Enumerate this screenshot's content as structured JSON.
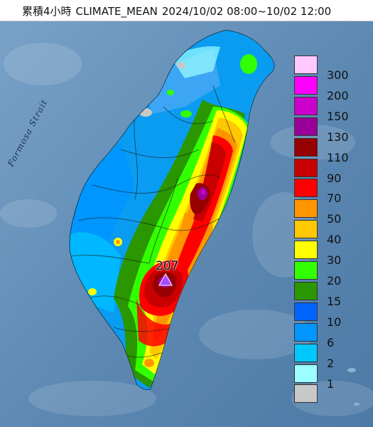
{
  "title": {
    "prefix": "累積4小時",
    "product": "CLIMATE_MEAN",
    "time_range": "2024/10/02 08:00~10/02 12:00"
  },
  "map": {
    "sea_label": "Formosa Strait",
    "peak": {
      "value": "207",
      "marker": "triangle-icon",
      "marker_color": "#a64cff"
    }
  },
  "legend": {
    "levels": [
      {
        "label": "300",
        "color": "#ffc8ff"
      },
      {
        "label": "200",
        "color": "#ff00ff"
      },
      {
        "label": "150",
        "color": "#cc00cc"
      },
      {
        "label": "130",
        "color": "#990099"
      },
      {
        "label": "110",
        "color": "#960000"
      },
      {
        "label": "90",
        "color": "#c80000"
      },
      {
        "label": "70",
        "color": "#ff0000"
      },
      {
        "label": "50",
        "color": "#ff9600"
      },
      {
        "label": "40",
        "color": "#ffc800"
      },
      {
        "label": "30",
        "color": "#ffff00"
      },
      {
        "label": "20",
        "color": "#32ff00"
      },
      {
        "label": "15",
        "color": "#2a9600"
      },
      {
        "label": "10",
        "color": "#0064ff"
      },
      {
        "label": "6",
        "color": "#0096ff"
      },
      {
        "label": "2",
        "color": "#00c8ff"
      },
      {
        "label": "1",
        "color": "#9bffff"
      },
      {
        "label": "",
        "color": "#c8c8c8"
      }
    ]
  }
}
